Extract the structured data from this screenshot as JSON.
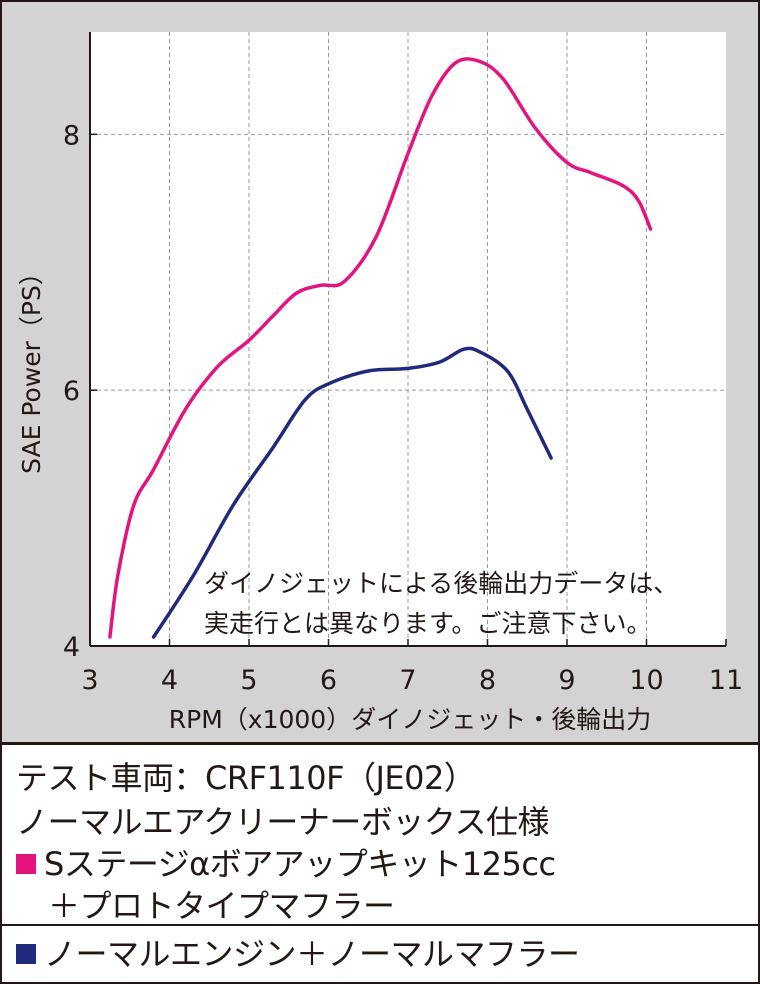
{
  "chart_data": {
    "type": "line",
    "title": "",
    "xlabel": "RPM（x1000）ダイノジェット・後輪出力",
    "ylabel": "SAE Power（PS）",
    "xlim": [
      3,
      11
    ],
    "ylim": [
      4,
      8.8
    ],
    "x_ticks": [
      "3",
      "4",
      "5",
      "6",
      "7",
      "8",
      "9",
      "10",
      "11"
    ],
    "y_ticks": [
      "4",
      "6",
      "8"
    ],
    "grid": true,
    "annotation": [
      "ダイノジェットによる後輪出力データは、",
      "実走行とは異なります。ご注意下さい。"
    ],
    "series": [
      {
        "color": "#e4147f",
        "points": [
          [
            3.25,
            4.07
          ],
          [
            3.35,
            4.55
          ],
          [
            3.55,
            5.1
          ],
          [
            3.8,
            5.38
          ],
          [
            4.2,
            5.85
          ],
          [
            4.6,
            6.18
          ],
          [
            5.0,
            6.39
          ],
          [
            5.3,
            6.58
          ],
          [
            5.6,
            6.76
          ],
          [
            5.9,
            6.82
          ],
          [
            6.2,
            6.85
          ],
          [
            6.6,
            7.2
          ],
          [
            7.0,
            7.85
          ],
          [
            7.3,
            8.3
          ],
          [
            7.6,
            8.56
          ],
          [
            7.9,
            8.57
          ],
          [
            8.2,
            8.43
          ],
          [
            8.6,
            8.05
          ],
          [
            9.0,
            7.78
          ],
          [
            9.3,
            7.7
          ],
          [
            9.7,
            7.6
          ],
          [
            9.9,
            7.48
          ],
          [
            10.05,
            7.26
          ]
        ]
      },
      {
        "color": "#1f2a7c",
        "points": [
          [
            3.8,
            4.07
          ],
          [
            4.3,
            4.55
          ],
          [
            4.8,
            5.1
          ],
          [
            5.3,
            5.55
          ],
          [
            5.7,
            5.92
          ],
          [
            6.0,
            6.05
          ],
          [
            6.5,
            6.15
          ],
          [
            7.0,
            6.17
          ],
          [
            7.4,
            6.22
          ],
          [
            7.7,
            6.32
          ],
          [
            7.9,
            6.3
          ],
          [
            8.25,
            6.15
          ],
          [
            8.5,
            5.85
          ],
          [
            8.8,
            5.47
          ]
        ]
      }
    ]
  },
  "legend": {
    "vehicle": "テスト車両：CRF110F（JE02）",
    "spec": "ノーマルエアクリーナーボックス仕様",
    "series1_line1": "Sステージαボアアップキット125cc",
    "series1_line2": "＋プロトタイプマフラー",
    "series2": "ノーマルエンジン＋ノーマルマフラー"
  }
}
